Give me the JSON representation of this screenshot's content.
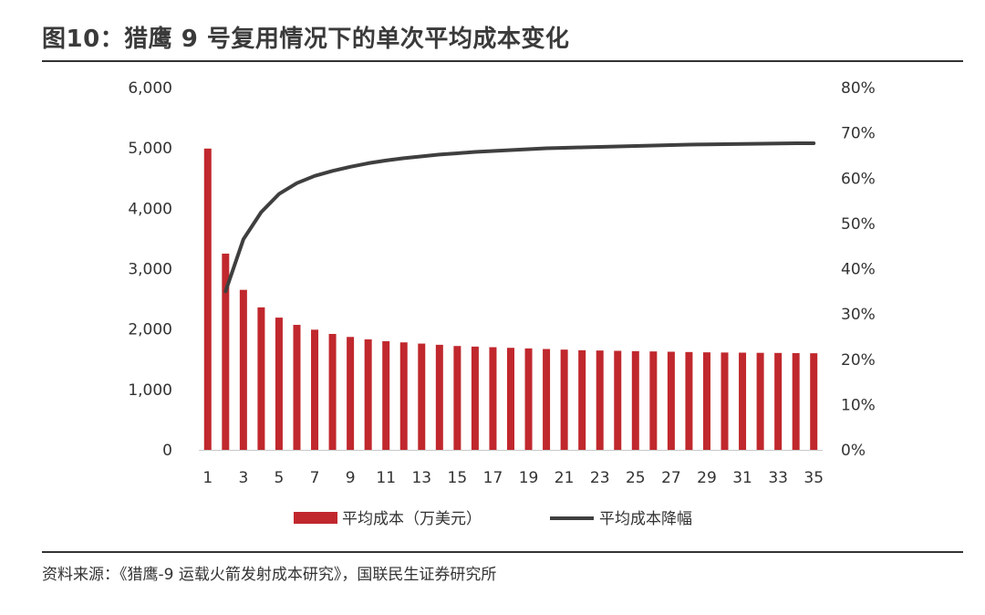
{
  "figure": {
    "title": "图10：猎鹰 9 号复用情况下的单次平均成本变化",
    "source": "资料来源：《猎鹰-9 运载火箭发射成本研究》，国联民生证券研究所"
  },
  "colors": {
    "bar": "#c0282d",
    "line": "#3f3f3f",
    "rule": "#333333"
  },
  "chart_data": {
    "type": "bar",
    "x": [
      1,
      2,
      3,
      4,
      5,
      6,
      7,
      8,
      9,
      10,
      11,
      12,
      13,
      14,
      15,
      16,
      17,
      18,
      19,
      20,
      21,
      22,
      23,
      24,
      25,
      26,
      27,
      28,
      29,
      30,
      31,
      32,
      33,
      34,
      35
    ],
    "x_tick_labels": [
      "1",
      "3",
      "5",
      "7",
      "9",
      "11",
      "13",
      "15",
      "17",
      "19",
      "21",
      "23",
      "25",
      "27",
      "29",
      "31",
      "33",
      "35"
    ],
    "y_left": {
      "ticks": [
        "0",
        "1,000",
        "2,000",
        "3,000",
        "4,000",
        "5,000",
        "6,000"
      ],
      "ylim": [
        0,
        6000
      ]
    },
    "y_right": {
      "ticks": [
        "0%",
        "10%",
        "20%",
        "30%",
        "40%",
        "50%",
        "60%",
        "70%",
        "80%"
      ],
      "ylim": [
        0,
        80
      ]
    },
    "series": [
      {
        "name": "平均成本（万美元）",
        "type": "bar",
        "axis": "left",
        "values": [
          4990,
          3250,
          2650,
          2360,
          2190,
          2070,
          1990,
          1920,
          1870,
          1830,
          1800,
          1780,
          1760,
          1740,
          1720,
          1710,
          1700,
          1690,
          1680,
          1670,
          1660,
          1650,
          1645,
          1640,
          1635,
          1630,
          1625,
          1620,
          1615,
          1612,
          1610,
          1607,
          1605,
          1602,
          1600
        ]
      },
      {
        "name": "平均成本降幅",
        "type": "line",
        "axis": "right",
        "values": [
          null,
          35,
          46.5,
          52.5,
          56.5,
          58.9,
          60.5,
          61.6,
          62.5,
          63.3,
          63.9,
          64.4,
          64.8,
          65.2,
          65.5,
          65.8,
          66.0,
          66.2,
          66.4,
          66.6,
          66.7,
          66.8,
          66.9,
          67.0,
          67.1,
          67.2,
          67.3,
          67.4,
          67.45,
          67.5,
          67.55,
          67.6,
          67.65,
          67.7,
          67.7
        ]
      }
    ],
    "legend": {
      "position": "bottom",
      "bar_label": "平均成本（万美元）",
      "line_label": "平均成本降幅"
    },
    "grid": false
  }
}
